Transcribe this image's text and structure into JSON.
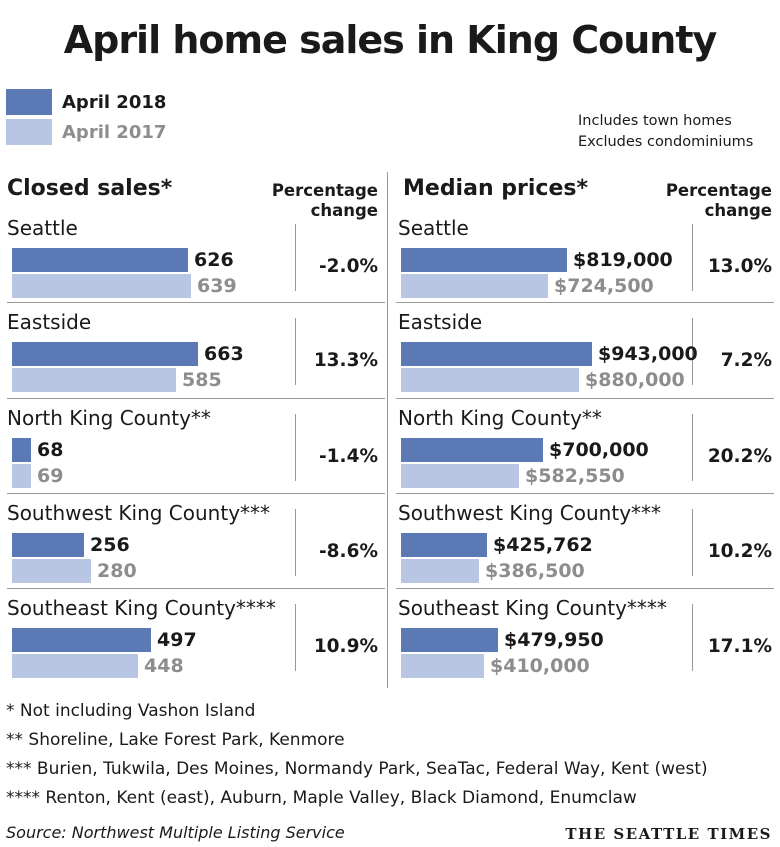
{
  "title": "April home sales in King County",
  "colors": {
    "current": "#5a79b5",
    "previous": "#b9c6e3",
    "current_text": "#1a1a1a",
    "previous_text": "#8d8d8d"
  },
  "legend": {
    "current": "April 2018",
    "previous": "April 2017"
  },
  "notes": [
    "Includes town homes",
    "Excludes condominiums"
  ],
  "chart_data": [
    {
      "type": "bar",
      "title": "Closed sales*",
      "pct_header": [
        "Percentage",
        "change"
      ],
      "categories": [
        "Seattle",
        "Eastside",
        "North King County**",
        "Southwest King County***",
        "Southeast King County****"
      ],
      "series": [
        {
          "name": "April 2018",
          "values": [
            626,
            663,
            68,
            256,
            497
          ],
          "labels": [
            "626",
            "663",
            "68",
            "256",
            "497"
          ]
        },
        {
          "name": "April 2017",
          "values": [
            639,
            585,
            69,
            280,
            448
          ],
          "labels": [
            "639",
            "585",
            "69",
            "280",
            "448"
          ]
        }
      ],
      "pct_change": [
        "-2.0%",
        "13.3%",
        "-1.4%",
        "-8.6%",
        "10.9%"
      ],
      "xlim": [
        0,
        700
      ]
    },
    {
      "type": "bar",
      "title": "Median prices*",
      "pct_header": [
        "Percentage",
        "change"
      ],
      "categories": [
        "Seattle",
        "Eastside",
        "North King County**",
        "Southwest King County***",
        "Southeast King County****"
      ],
      "series": [
        {
          "name": "April 2018",
          "values": [
            819000,
            943000,
            700000,
            425762,
            479950
          ],
          "labels": [
            "$819,000",
            "$943,000",
            "$700,000",
            "$425,762",
            "$479,950"
          ]
        },
        {
          "name": "April 2017",
          "values": [
            724500,
            880000,
            582550,
            386500,
            410000
          ],
          "labels": [
            "$724,500",
            "$880,000",
            "$582,550",
            "$386,500",
            "$410,000"
          ]
        }
      ],
      "pct_change": [
        "13.0%",
        "7.2%",
        "20.2%",
        "10.2%",
        "17.1%"
      ],
      "xlim": [
        0,
        1000000
      ]
    }
  ],
  "footnotes": [
    "* Not including Vashon Island",
    "**  Shoreline, Lake Forest Park, Kenmore",
    "*** Burien, Tukwila, Des Moines, Normandy Park, SeaTac, Federal Way, Kent (west)",
    "**** Renton, Kent (east), Auburn, Maple Valley, Black Diamond, Enumclaw"
  ],
  "source": "Source: Northwest Multiple Listing Service",
  "brand": "THE SEATTLE TIMES"
}
